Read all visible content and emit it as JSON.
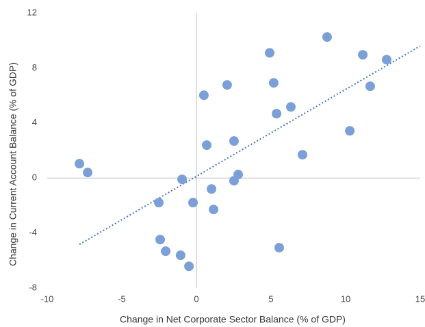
{
  "chart_data": {
    "type": "scatter",
    "x_label": "Change in Net Corporate Sector Balance (% of GDP)",
    "y_label": "Change in  Current Account Balance (% of GDP)",
    "xlim": [
      -10,
      15
    ],
    "xticks": [
      -10,
      -5,
      0,
      5,
      10,
      15
    ],
    "ylim": [
      -8,
      12
    ],
    "yticks": [
      -8,
      -4,
      0,
      4,
      8,
      12
    ],
    "color": "#7ba0d8",
    "x": [
      -7.84,
      -7.29,
      -0.96,
      -2.52,
      -0.23,
      -2.43,
      -2.06,
      -1.06,
      -0.5,
      0.5,
      0.69,
      1.01,
      1.15,
      2.06,
      2.52,
      2.52,
      2.8,
      4.91,
      5.18,
      5.37,
      5.55,
      6.33,
      7.11,
      8.76,
      10.28,
      11.15,
      11.65,
      12.75
    ],
    "values": [
      1.04,
      0.4,
      -0.1,
      -1.79,
      -1.79,
      -4.48,
      -5.32,
      -5.62,
      -6.42,
      6.02,
      2.39,
      -0.8,
      -2.29,
      6.77,
      2.69,
      -0.2,
      0.25,
      9.1,
      6.92,
      4.68,
      -5.07,
      5.17,
      1.69,
      10.25,
      3.43,
      8.96,
      6.67,
      8.61
    ],
    "trendline": {
      "color": "#3f75c0",
      "x": [
        -7.84,
        15
      ],
      "values": [
        -4.83,
        9.6
      ]
    }
  }
}
